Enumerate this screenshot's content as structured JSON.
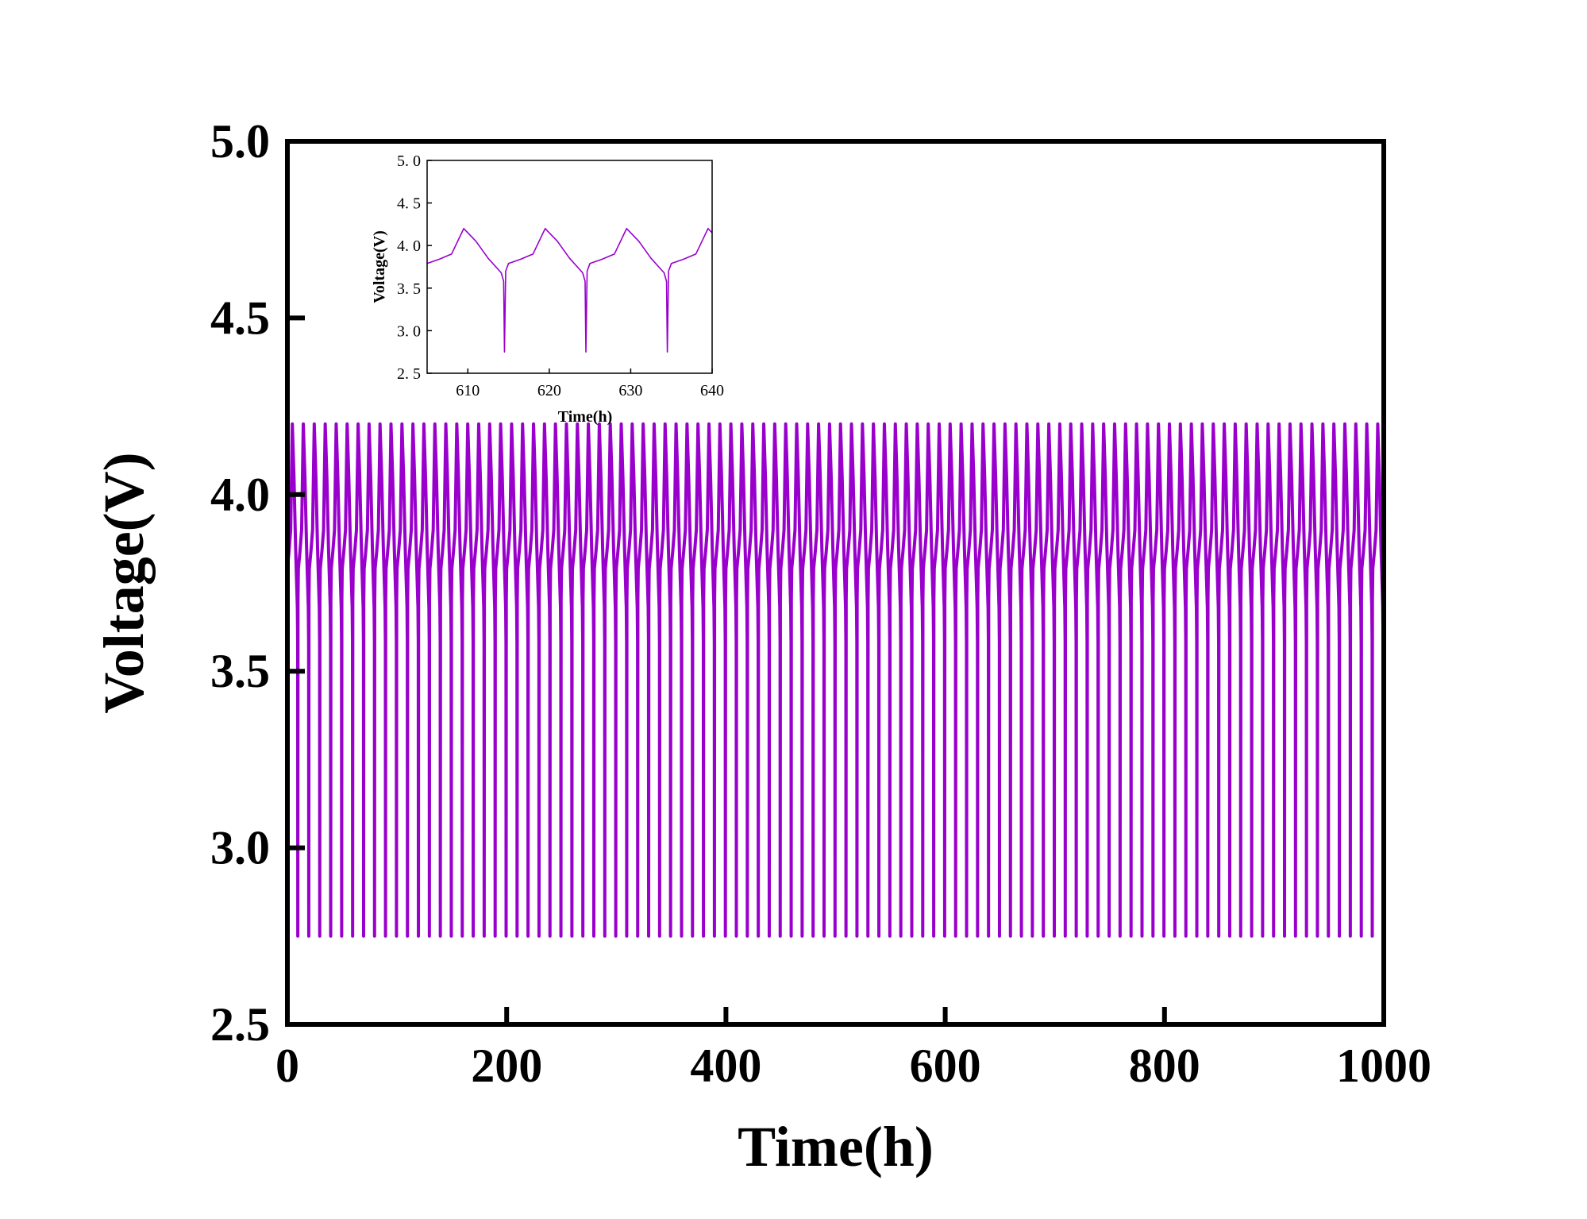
{
  "chart_data": [
    {
      "type": "line",
      "role": "main",
      "xlabel": "Time(h)",
      "ylabel": "Voltage(V)",
      "xlim": [
        0,
        1000
      ],
      "ylim": [
        2.5,
        5.0
      ],
      "xticks": [
        0,
        200,
        400,
        600,
        800,
        1000
      ],
      "yticks": [
        2.5,
        3.0,
        3.5,
        4.0,
        4.5,
        5.0
      ],
      "xtick_labels": [
        "0",
        "200",
        "400",
        "600",
        "800",
        "1000"
      ],
      "ytick_labels": [
        "2.5",
        "3.0",
        "3.5",
        "4.0",
        "4.5",
        "5.0"
      ],
      "grid": false,
      "line_color": "#9900cc",
      "series": [
        {
          "pattern": "charge-discharge cycling",
          "cycle_period_h": 10,
          "cycles": 100,
          "time_range_h": [
            0,
            1000
          ],
          "v_max": 4.2,
          "v_min": 2.75,
          "v_plateau_after_dip": 3.8,
          "cycle_profile": [
            {
              "t": 0,
              "v": 3.79
            },
            {
              "t": 1.5,
              "v": 3.84
            },
            {
              "t": 3,
              "v": 3.9
            },
            {
              "t": 4.5,
              "v": 4.2
            },
            {
              "t": 6,
              "v": 4.05
            },
            {
              "t": 7.5,
              "v": 3.85
            },
            {
              "t": 9.1,
              "v": 3.68
            },
            {
              "t": 9.4,
              "v": 3.58
            },
            {
              "t": 9.5,
              "v": 2.75
            },
            {
              "t": 9.65,
              "v": 3.7
            },
            {
              "t": 10,
              "v": 3.79
            }
          ]
        }
      ]
    },
    {
      "type": "line",
      "role": "inset",
      "xlabel": "Time(h)",
      "ylabel": "Voltage(V)",
      "xlim": [
        605,
        640
      ],
      "ylim": [
        2.5,
        5.0
      ],
      "xticks": [
        610,
        620,
        630,
        640
      ],
      "yticks": [
        2.5,
        3.0,
        3.5,
        4.0,
        4.5,
        5.0
      ],
      "xtick_labels": [
        "610",
        "620",
        "630",
        "640"
      ],
      "ytick_labels": [
        "2. 5",
        "3. 0",
        "3. 5",
        "4. 0",
        "4. 5",
        "5. 0"
      ],
      "grid": false,
      "line_color": "#9900cc",
      "series": [
        {
          "x": [
            605,
            606.5,
            608,
            609.5,
            611,
            612.5,
            614.1,
            614.4,
            614.5,
            614.65,
            615,
            616.5,
            618,
            619.5,
            621,
            622.5,
            624.1,
            624.4,
            624.5,
            624.65,
            625,
            626.5,
            628,
            629.5,
            631,
            632.5,
            634.1,
            634.4,
            634.5,
            634.65,
            635,
            636.5,
            638,
            639.5,
            640
          ],
          "y": [
            3.79,
            3.84,
            3.9,
            4.2,
            4.05,
            3.85,
            3.68,
            3.58,
            2.75,
            3.7,
            3.79,
            3.84,
            3.9,
            4.2,
            4.05,
            3.85,
            3.68,
            3.58,
            2.75,
            3.7,
            3.79,
            3.84,
            3.9,
            4.2,
            4.05,
            3.85,
            3.68,
            3.58,
            2.75,
            3.7,
            3.79,
            3.84,
            3.9,
            4.2,
            4.15
          ]
        }
      ]
    }
  ]
}
